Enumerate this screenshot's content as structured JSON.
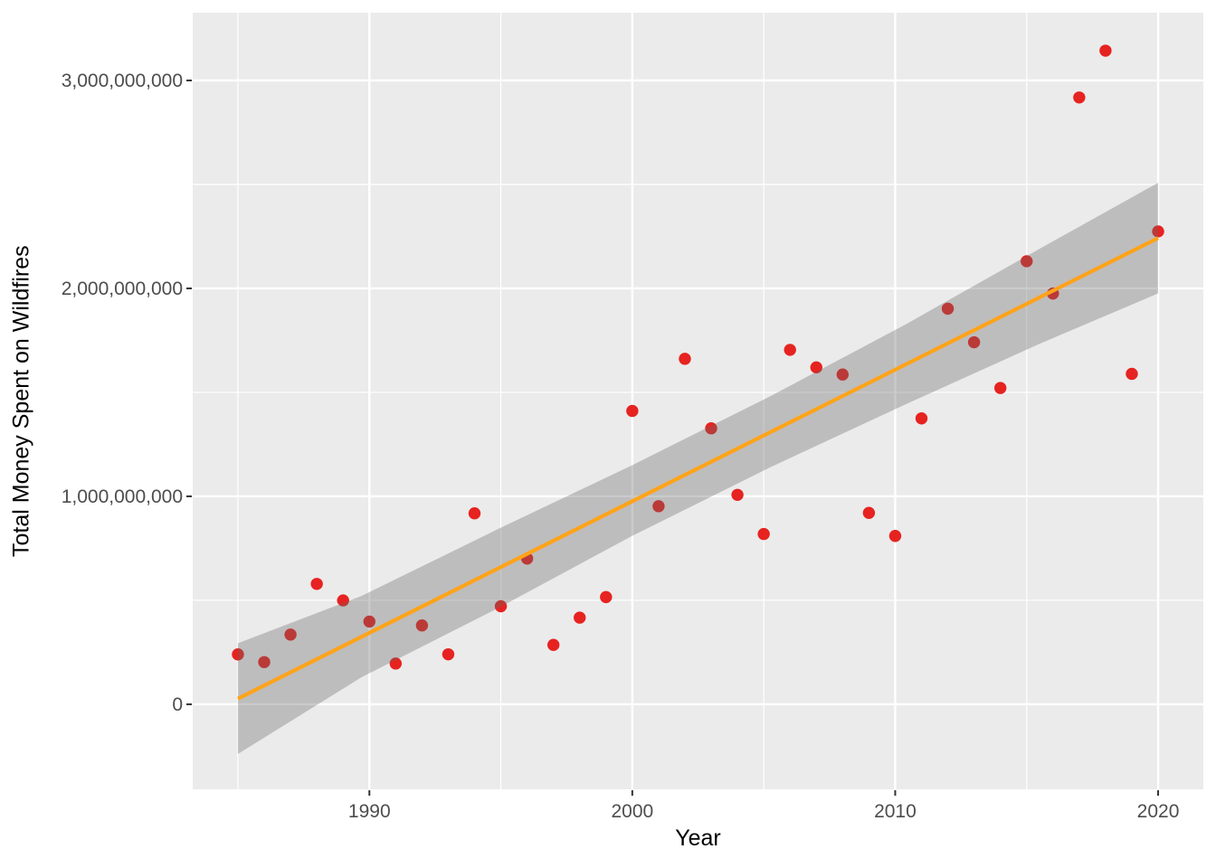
{
  "chart_data": {
    "type": "scatter",
    "title": "",
    "xlabel": "Year",
    "ylabel": "Total Money Spent on Wildfires",
    "legend": false,
    "grid": true,
    "panel_style": "ggplot-gray",
    "xlim": [
      1983.28,
      2021.72
    ],
    "ylim": [
      -409000000,
      3326000000
    ],
    "x_ticks": {
      "values": [
        1990,
        2000,
        2010,
        2020
      ],
      "labels": [
        "1990",
        "2000",
        "2010",
        "2020"
      ]
    },
    "y_ticks": {
      "values": [
        0,
        1000000000,
        2000000000,
        3000000000
      ],
      "labels": [
        "0",
        "1,000,000,000",
        "2,000,000,000",
        "3,000,000,000"
      ]
    },
    "x_minor_ticks": [
      1985,
      1995,
      2005,
      2015
    ],
    "y_minor_ticks": [
      500000000,
      1500000000,
      2500000000
    ],
    "points": {
      "x": [
        1985,
        1986,
        1987,
        1988,
        1989,
        1990,
        1991,
        1992,
        1993,
        1994,
        1995,
        1996,
        1997,
        1998,
        1999,
        2000,
        2001,
        2002,
        2003,
        2004,
        2005,
        2006,
        2007,
        2008,
        2009,
        2010,
        2011,
        2012,
        2013,
        2014,
        2015,
        2016,
        2017,
        2018,
        2019,
        2020
      ],
      "y": [
        239943000,
        202778000,
        335131000,
        578925000,
        499490000,
        397882000,
        196075000,
        379205000,
        240436000,
        918335000,
        471469000,
        700727000,
        285724000,
        416704000,
        515519000,
        1410802000,
        952696000,
        1661314000,
        1327138000,
        1007244000,
        818954000,
        1704477000,
        1620145000,
        1585831000,
        920491000,
        809499000,
        1374810000,
        1902446000,
        1740934000,
        1521029000,
        2130543000,
        1975383000,
        2918165000,
        3143256000,
        1589000000,
        2274000000
      ]
    },
    "trend_line": {
      "model": "linear",
      "x": [
        1985,
        2020
      ],
      "y": [
        27000000,
        2242000000
      ]
    },
    "confidence_band": {
      "x": [
        1985,
        1989.7,
        1994.9,
        2000,
        2005.2,
        2010.4,
        2015.5,
        2020
      ],
      "upper": [
        294000000,
        521000000,
        843000000,
        1150000000,
        1478000000,
        1827000000,
        2191000000,
        2508000000
      ],
      "lower": [
        -239000000,
        130000000,
        463000000,
        810000000,
        1137000000,
        1443000000,
        1734000000,
        1976000000
      ]
    },
    "colors": {
      "point": "#E62320",
      "trend": "#FFA319",
      "band": "rgba(103,103,103,0.35)",
      "panel": "#EBEBEB",
      "grid": "#FFFFFF",
      "tick_text": "#4D4D4D",
      "tick_mark": "#333333",
      "axis_title": "#000000",
      "background": "#FFFFFF"
    }
  }
}
